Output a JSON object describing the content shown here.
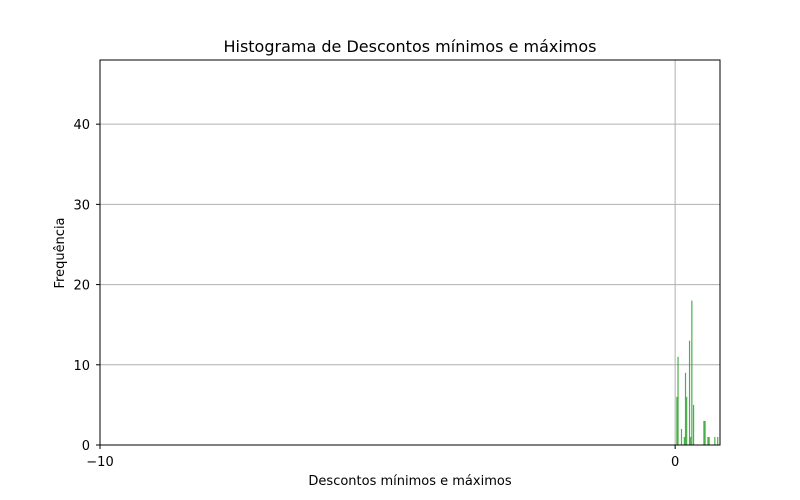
{
  "chart_data": {
    "type": "histogram",
    "title": "Histograma de Descontos mínimos e máximos",
    "xlabel": "Descontos mínimos e máximos",
    "ylabel": "Frequência",
    "xlim": [
      -10,
      0.78
    ],
    "ylim": [
      0,
      48
    ],
    "x_ticks": [
      {
        "value": -10,
        "label": "−10"
      },
      {
        "value": 0,
        "label": "0"
      }
    ],
    "y_ticks": [
      {
        "value": 0,
        "label": "0"
      },
      {
        "value": 10,
        "label": "10"
      },
      {
        "value": 20,
        "label": "20"
      },
      {
        "value": 30,
        "label": "30"
      },
      {
        "value": 40,
        "label": "40"
      }
    ],
    "grid": true,
    "bar_color": "#2ca02c",
    "bins": [
      {
        "x": 0.02,
        "width": 0.016,
        "count": 6
      },
      {
        "x": 0.04,
        "width": 0.016,
        "count": 11
      },
      {
        "x": 0.1,
        "width": 0.016,
        "count": 2
      },
      {
        "x": 0.15,
        "width": 0.016,
        "count": 1
      },
      {
        "x": 0.17,
        "width": 0.016,
        "count": 9
      },
      {
        "x": 0.19,
        "width": 0.016,
        "count": 6
      },
      {
        "x": 0.24,
        "width": 0.016,
        "count": 13
      },
      {
        "x": 0.26,
        "width": 0.016,
        "count": 1
      },
      {
        "x": 0.28,
        "width": 0.016,
        "count": 18
      },
      {
        "x": 0.31,
        "width": 0.016,
        "count": 5
      },
      {
        "x": 0.49,
        "width": 0.016,
        "count": 3
      },
      {
        "x": 0.51,
        "width": 0.016,
        "count": 3
      },
      {
        "x": 0.56,
        "width": 0.016,
        "count": 1
      },
      {
        "x": 0.58,
        "width": 0.016,
        "count": 1
      },
      {
        "x": 0.68,
        "width": 0.016,
        "count": 1
      },
      {
        "x": 0.73,
        "width": 0.016,
        "count": 1
      }
    ]
  }
}
